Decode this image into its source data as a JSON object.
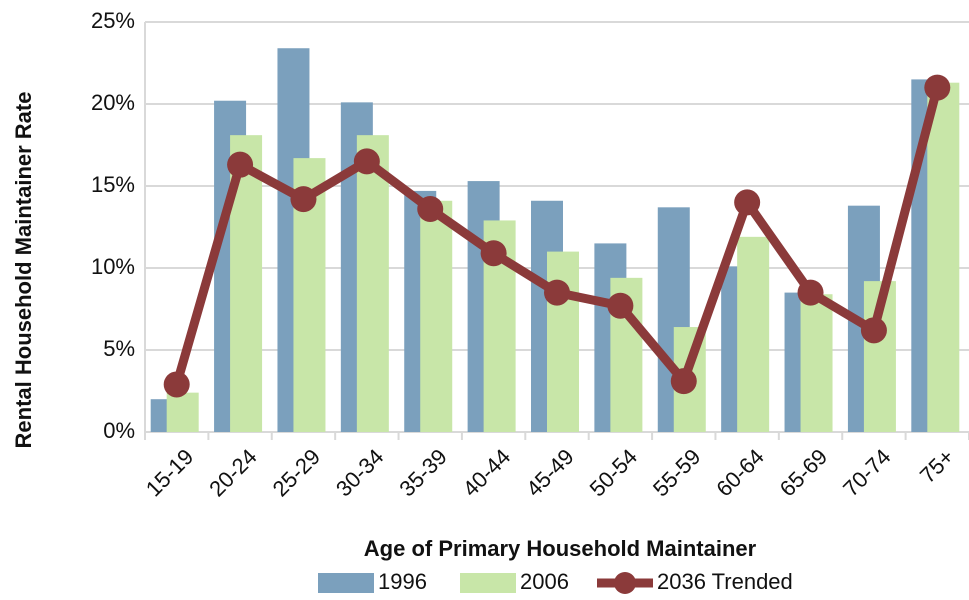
{
  "chart_data": {
    "type": "bar",
    "x_label": "Age of Primary Household Maintainer",
    "y_label": "Rental Household Maintainer Rate",
    "categories": [
      "15-19",
      "20-24",
      "25-29",
      "30-34",
      "35-39",
      "40-44",
      "45-49",
      "50-54",
      "55-59",
      "60-64",
      "65-69",
      "70-74",
      "75+"
    ],
    "series": [
      {
        "name": "1996",
        "color": "#7ba0bd",
        "values": [
          2.0,
          20.2,
          23.4,
          20.1,
          14.7,
          15.3,
          14.1,
          11.5,
          13.7,
          10.1,
          8.5,
          13.8,
          21.5
        ]
      },
      {
        "name": "2006",
        "color": "#c8e6a8",
        "values": [
          2.4,
          18.1,
          16.7,
          18.1,
          14.1,
          12.9,
          11.0,
          9.4,
          6.4,
          11.9,
          8.4,
          9.2,
          21.3
        ]
      },
      {
        "name": "2036 Trended",
        "type": "line",
        "color": "#8b3a3a",
        "values": [
          2.9,
          16.3,
          14.2,
          16.5,
          13.6,
          10.9,
          8.5,
          7.7,
          3.1,
          14.0,
          8.5,
          6.2,
          21.0
        ]
      }
    ],
    "ylim": [
      0,
      25
    ],
    "yticks": [
      {
        "value": 0,
        "label": "0%"
      },
      {
        "value": 5,
        "label": "5%"
      },
      {
        "value": 10,
        "label": "10%"
      },
      {
        "value": 15,
        "label": "15%"
      },
      {
        "value": 20,
        "label": "20%"
      },
      {
        "value": 25,
        "label": "25%"
      }
    ],
    "grid": true,
    "legend": "bottom"
  }
}
